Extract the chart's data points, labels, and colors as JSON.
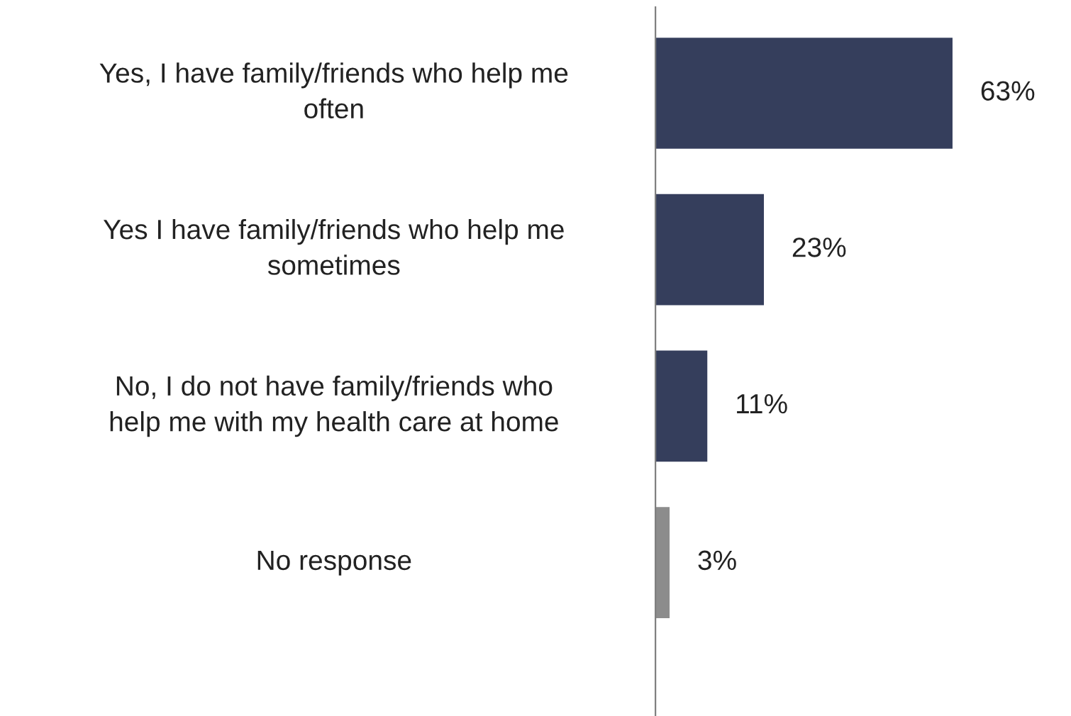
{
  "chart_data": {
    "type": "bar",
    "orientation": "horizontal",
    "categories": [
      "Yes, I have family/friends who help me\noften",
      "Yes I have family/friends who help me\nsometimes",
      "No, I do not have family/friends who\nhelp me with my health care at home",
      "No response"
    ],
    "values": [
      63,
      23,
      11,
      3
    ],
    "colors": [
      "#353e5c",
      "#353e5c",
      "#353e5c",
      "#8c8c8c"
    ],
    "value_labels": [
      "63%",
      "23%",
      "11%",
      "3%"
    ]
  }
}
